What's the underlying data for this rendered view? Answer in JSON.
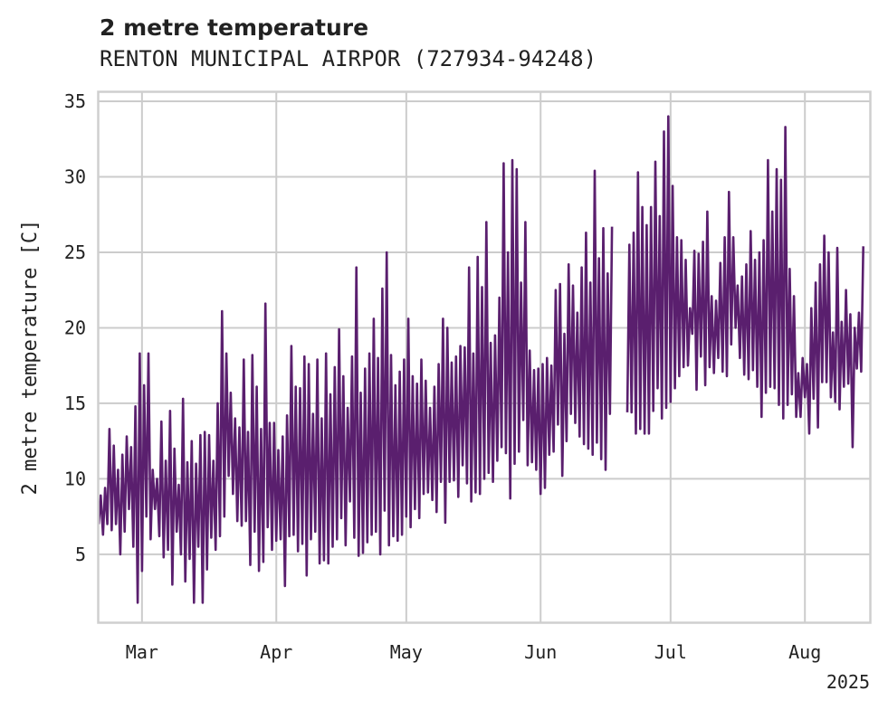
{
  "chart_data": {
    "type": "line",
    "title": "2 metre temperature",
    "subtitle": "RENTON MUNICIPAL AIRPOR (727934-94248)",
    "xlabel": "",
    "ylabel": "2 metre temperature [C]",
    "year_label": "2025",
    "x_tick_labels": [
      "Mar",
      "Apr",
      "May",
      "Jun",
      "Jul",
      "Aug"
    ],
    "x_tick_dates": [
      "2025-03-01",
      "2025-04-01",
      "2025-05-01",
      "2025-06-01",
      "2025-07-01",
      "2025-08-01"
    ],
    "y_ticks": [
      5,
      10,
      15,
      20,
      25,
      30,
      35
    ],
    "xlim": [
      "2025-02-19",
      "2025-08-16"
    ],
    "ylim": [
      0.5,
      35.6
    ],
    "grid": true,
    "line_color": "#5a1f6e",
    "series": [
      {
        "x": [
          "2025-02-19",
          "2025-02-20",
          "2025-02-21",
          "2025-02-22",
          "2025-02-23",
          "2025-02-24",
          "2025-02-25",
          "2025-02-26",
          "2025-02-27",
          "2025-02-28",
          "2025-03-01",
          "2025-03-02",
          "2025-03-03",
          "2025-03-04",
          "2025-03-05",
          "2025-03-06",
          "2025-03-07",
          "2025-03-08",
          "2025-03-09",
          "2025-03-10",
          "2025-03-11",
          "2025-03-12",
          "2025-03-13",
          "2025-03-14",
          "2025-03-15",
          "2025-03-16",
          "2025-03-17",
          "2025-03-18",
          "2025-03-19",
          "2025-03-20",
          "2025-03-21",
          "2025-03-22",
          "2025-03-23",
          "2025-03-24",
          "2025-03-25",
          "2025-03-26",
          "2025-03-27",
          "2025-03-28",
          "2025-03-29",
          "2025-03-30",
          "2025-03-31",
          "2025-04-01",
          "2025-04-02",
          "2025-04-03",
          "2025-04-04",
          "2025-04-05",
          "2025-04-06",
          "2025-04-07",
          "2025-04-08",
          "2025-04-09",
          "2025-04-10",
          "2025-04-11",
          "2025-04-12",
          "2025-04-13",
          "2025-04-14",
          "2025-04-15",
          "2025-04-16",
          "2025-04-17",
          "2025-04-18",
          "2025-04-19",
          "2025-04-20",
          "2025-04-21",
          "2025-04-22",
          "2025-04-23",
          "2025-04-24",
          "2025-04-25",
          "2025-04-26",
          "2025-04-27",
          "2025-04-28",
          "2025-04-29",
          "2025-04-30",
          "2025-05-01",
          "2025-05-02",
          "2025-05-03",
          "2025-05-04",
          "2025-05-05",
          "2025-05-06",
          "2025-05-07",
          "2025-05-08",
          "2025-05-09",
          "2025-05-10",
          "2025-05-11",
          "2025-05-12",
          "2025-05-13",
          "2025-05-14",
          "2025-05-15",
          "2025-05-16",
          "2025-05-17",
          "2025-05-18",
          "2025-05-19",
          "2025-05-20",
          "2025-05-21",
          "2025-05-22",
          "2025-05-23",
          "2025-05-24",
          "2025-05-25",
          "2025-05-26",
          "2025-05-27",
          "2025-05-28",
          "2025-05-29",
          "2025-05-30",
          "2025-05-31",
          "2025-06-01",
          "2025-06-02",
          "2025-06-03",
          "2025-06-04",
          "2025-06-05",
          "2025-06-06",
          "2025-06-07",
          "2025-06-08",
          "2025-06-09",
          "2025-06-10",
          "2025-06-11",
          "2025-06-12",
          "2025-06-13",
          "2025-06-14",
          "2025-06-15",
          "2025-06-16",
          "2025-06-17",
          "2025-06-18",
          "2025-06-19",
          "2025-06-20",
          "2025-06-21",
          "2025-06-22",
          "2025-06-23",
          "2025-06-24",
          "2025-06-25",
          "2025-06-26",
          "2025-06-27",
          "2025-06-28",
          "2025-06-29",
          "2025-06-30",
          "2025-07-01",
          "2025-07-02",
          "2025-07-03",
          "2025-07-04",
          "2025-07-05",
          "2025-07-06",
          "2025-07-07",
          "2025-07-08",
          "2025-07-09",
          "2025-07-10",
          "2025-07-11",
          "2025-07-12",
          "2025-07-13",
          "2025-07-14",
          "2025-07-15",
          "2025-07-16",
          "2025-07-17",
          "2025-07-18",
          "2025-07-19",
          "2025-07-20",
          "2025-07-21",
          "2025-07-22",
          "2025-07-23",
          "2025-07-24",
          "2025-07-25",
          "2025-07-26",
          "2025-07-27",
          "2025-07-28",
          "2025-07-29",
          "2025-07-30",
          "2025-07-31",
          "2025-08-01",
          "2025-08-02",
          "2025-08-03",
          "2025-08-04",
          "2025-08-05",
          "2025-08-06",
          "2025-08-07",
          "2025-08-08",
          "2025-08-09",
          "2025-08-10",
          "2025-08-11",
          "2025-08-12",
          "2025-08-13",
          "2025-08-14",
          "2025-08-15"
        ],
        "min": [
          7.0,
          6.3,
          7.0,
          6.6,
          7.0,
          5.0,
          6.5,
          8.0,
          5.5,
          1.8,
          3.9,
          7.5,
          6.0,
          8.0,
          6.2,
          4.8,
          5.3,
          3.0,
          6.5,
          5.0,
          3.2,
          4.7,
          1.8,
          5.5,
          1.8,
          4.0,
          6.1,
          5.3,
          6.2,
          7.5,
          10.2,
          9.0,
          7.2,
          6.9,
          7.2,
          4.3,
          6.5,
          3.9,
          4.5,
          6.8,
          5.3,
          5.9,
          6.0,
          2.9,
          6.2,
          6.3,
          5.2,
          5.7,
          3.6,
          6.0,
          6.5,
          4.4,
          4.6,
          4.4,
          5.5,
          6.0,
          7.4,
          5.6,
          8.5,
          6.1,
          4.9,
          5.1,
          5.8,
          6.3,
          6.5,
          5.0,
          7.9,
          5.6,
          6.2,
          5.9,
          6.3,
          7.5,
          6.8,
          8.0,
          7.4,
          9.0,
          9.1,
          8.6,
          7.8,
          9.8,
          7.1,
          9.8,
          9.9,
          8.8,
          10.9,
          9.7,
          8.5,
          9.1,
          9.0,
          10.0,
          10.4,
          9.8,
          11.2,
          12.1,
          11.7,
          8.7,
          11.0,
          11.8,
          13.9,
          10.9,
          11.1,
          10.6,
          9.0,
          9.4,
          11.6,
          11.8,
          13.6,
          10.2,
          12.5,
          14.3,
          13.7,
          12.8,
          12.3,
          12.0,
          11.6,
          12.4,
          11.3,
          10.6,
          14.3,
          null,
          null,
          null,
          14.4,
          14.4,
          13.0,
          13.3,
          13.0,
          13.0,
          14.5,
          16.0,
          14.0,
          14.7,
          15.1,
          16.0,
          16.8,
          17.4,
          17.5,
          19.6,
          15.9,
          18.1,
          16.2,
          17.4,
          17.0,
          18.0,
          17.1,
          16.8,
          18.9,
          20.0,
          18.0,
          16.9,
          16.6,
          17.2,
          16.1,
          14.1,
          15.7,
          16.1,
          16.0,
          14.9,
          14.0,
          14.9,
          15.6,
          14.1,
          14.1,
          15.4,
          13.0,
          15.3,
          13.4,
          16.4,
          16.4,
          15.4,
          15.1,
          14.6,
          16.1,
          16.3,
          12.1,
          17.3,
          17.1,
          17.2,
          18.2,
          16.8,
          16.7
        ],
        "max": [
          8.9,
          9.4,
          13.3,
          12.2,
          10.6,
          11.6,
          12.8,
          12.1,
          14.8,
          18.3,
          16.2,
          18.3,
          10.6,
          10.0,
          13.8,
          11.2,
          14.5,
          12.0,
          9.6,
          15.3,
          11.1,
          12.5,
          11.0,
          12.9,
          13.1,
          12.9,
          11.2,
          15.0,
          21.1,
          18.3,
          15.7,
          14.0,
          13.4,
          17.9,
          13.1,
          18.2,
          16.1,
          13.3,
          21.6,
          13.7,
          13.7,
          11.9,
          12.8,
          14.2,
          18.8,
          16.1,
          16.0,
          18.1,
          17.6,
          14.3,
          17.9,
          14.0,
          18.3,
          15.6,
          17.4,
          19.9,
          16.8,
          14.7,
          18.1,
          24.0,
          15.7,
          17.3,
          18.3,
          20.6,
          18.0,
          22.6,
          25.0,
          18.2,
          16.2,
          17.1,
          17.9,
          20.6,
          16.8,
          16.3,
          17.9,
          16.5,
          14.7,
          16.1,
          17.6,
          20.6,
          20.0,
          17.7,
          18.1,
          18.8,
          18.7,
          24.0,
          18.3,
          24.7,
          22.7,
          27.0,
          19.0,
          19.5,
          22.0,
          30.9,
          25.0,
          31.1,
          30.5,
          23.0,
          27.0,
          18.5,
          17.2,
          17.3,
          17.6,
          18.0,
          17.5,
          22.5,
          22.9,
          19.6,
          24.2,
          22.8,
          21.0,
          24.0,
          26.3,
          23.0,
          30.4,
          24.6,
          26.6,
          23.6,
          26.7,
          25.0,
          30.8,
          31.0,
          25.5,
          26.3,
          30.3,
          28.0,
          26.8,
          28.0,
          31.0,
          27.4,
          33.0,
          34.0,
          29.4,
          26.0,
          25.8,
          24.5,
          21.3,
          25.1,
          24.9,
          25.7,
          27.7,
          22.1,
          21.8,
          24.3,
          26.0,
          29.0,
          26.0,
          22.8,
          23.4,
          24.2,
          26.4,
          24.5,
          25.0,
          25.8,
          31.1,
          27.7,
          30.5,
          29.8,
          33.3,
          23.9,
          22.1,
          17.0,
          18.0,
          17.6,
          21.3,
          23.0,
          24.2,
          26.1,
          25.0,
          19.7,
          25.3,
          20.4,
          22.5,
          20.9,
          20.0,
          21.0,
          25.4
        ]
      }
    ]
  }
}
